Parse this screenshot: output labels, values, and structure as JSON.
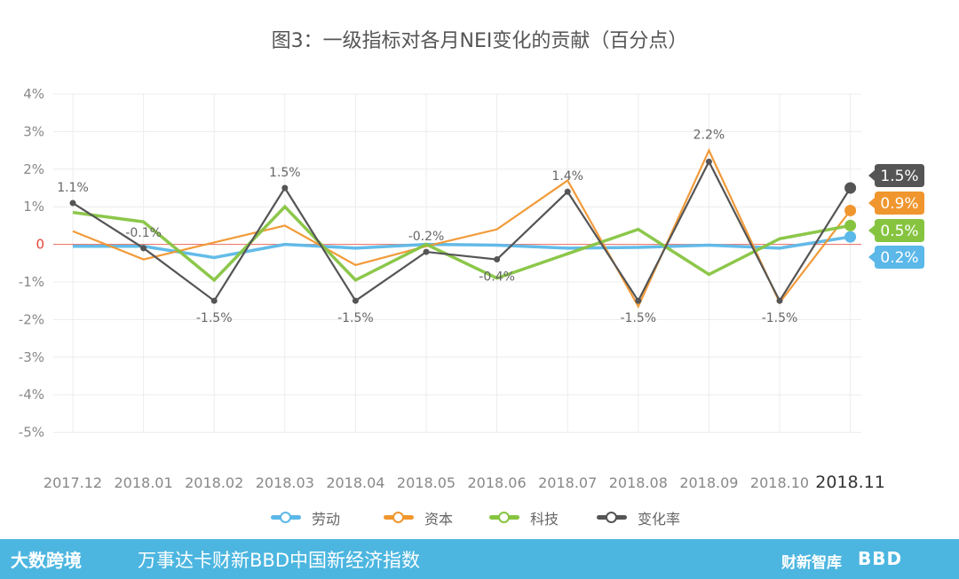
{
  "chart_data": {
    "type": "line",
    "title": "图3：一级指标对各月NEI变化的贡献（百分点）",
    "categories": [
      "2017.12",
      "2018.01",
      "2018.02",
      "2018.03",
      "2018.04",
      "2018.05",
      "2018.06",
      "2018.07",
      "2018.08",
      "2018.09",
      "2018.10",
      "2018.11"
    ],
    "ylim": [
      -5,
      4
    ],
    "yticks": [
      "4%",
      "3%",
      "2%",
      "1%",
      "0",
      "-1%",
      "-2%",
      "-3%",
      "-4%",
      "-5%"
    ],
    "ytick_values": [
      4,
      3,
      2,
      1,
      0,
      -1,
      -2,
      -3,
      -4,
      -5
    ],
    "grid": true,
    "legend_position": "bottom",
    "series": [
      {
        "name": "劳动",
        "color": "#5bb8e8",
        "values": [
          -0.05,
          -0.05,
          -0.35,
          0.0,
          -0.1,
          0.0,
          -0.02,
          -0.1,
          -0.08,
          -0.02,
          -0.1,
          0.2
        ],
        "end_label": "0.2%"
      },
      {
        "name": "资本",
        "color": "#f0962e",
        "values": [
          0.35,
          -0.4,
          0.05,
          0.5,
          -0.55,
          -0.05,
          0.4,
          1.7,
          -1.65,
          2.5,
          -1.55,
          0.9
        ],
        "end_label": "0.9%"
      },
      {
        "name": "科技",
        "color": "#86c440",
        "values": [
          0.85,
          0.6,
          -0.95,
          1.0,
          -0.95,
          0.0,
          -0.9,
          -0.25,
          0.4,
          -0.8,
          0.15,
          0.5
        ],
        "end_label": "0.5%"
      },
      {
        "name": "变化率",
        "color": "#555555",
        "values": [
          1.1,
          -0.1,
          -1.5,
          1.5,
          -1.5,
          -0.2,
          -0.4,
          1.4,
          -1.5,
          2.2,
          -1.5,
          1.5
        ],
        "end_label": "1.5%"
      }
    ],
    "data_labels": [
      {
        "series": 3,
        "index": 0,
        "text": "1.1%",
        "pos": "above"
      },
      {
        "series": 3,
        "index": 1,
        "text": "-0.1%",
        "pos": "above"
      },
      {
        "series": 3,
        "index": 2,
        "text": "-1.5%",
        "pos": "below"
      },
      {
        "series": 3,
        "index": 3,
        "text": "1.5%",
        "pos": "above"
      },
      {
        "series": 3,
        "index": 4,
        "text": "-1.5%",
        "pos": "below"
      },
      {
        "series": 3,
        "index": 5,
        "text": "-0.2%",
        "pos": "above"
      },
      {
        "series": 3,
        "index": 6,
        "text": "-0.4%",
        "pos": "below"
      },
      {
        "series": 3,
        "index": 7,
        "text": "1.4%",
        "pos": "above"
      },
      {
        "series": 3,
        "index": 8,
        "text": "-1.5%",
        "pos": "below"
      },
      {
        "series": 1,
        "index": 9,
        "text": "2.2%",
        "pos": "above"
      },
      {
        "series": 3,
        "index": 10,
        "text": "-1.5%",
        "pos": "below"
      }
    ]
  },
  "legend": [
    {
      "label": "劳动",
      "color": "#5bb8e8"
    },
    {
      "label": "资本",
      "color": "#f0962e"
    },
    {
      "label": "科技",
      "color": "#86c440"
    },
    {
      "label": "变化率",
      "color": "#555555"
    }
  ],
  "footer": {
    "logo_text": "大数跨境",
    "text": "万事达卡财新BBD中国新经济指数",
    "right_logo_1": "财新智库",
    "right_logo_2": "BBD",
    "bg_color": "#4cb6e0"
  }
}
